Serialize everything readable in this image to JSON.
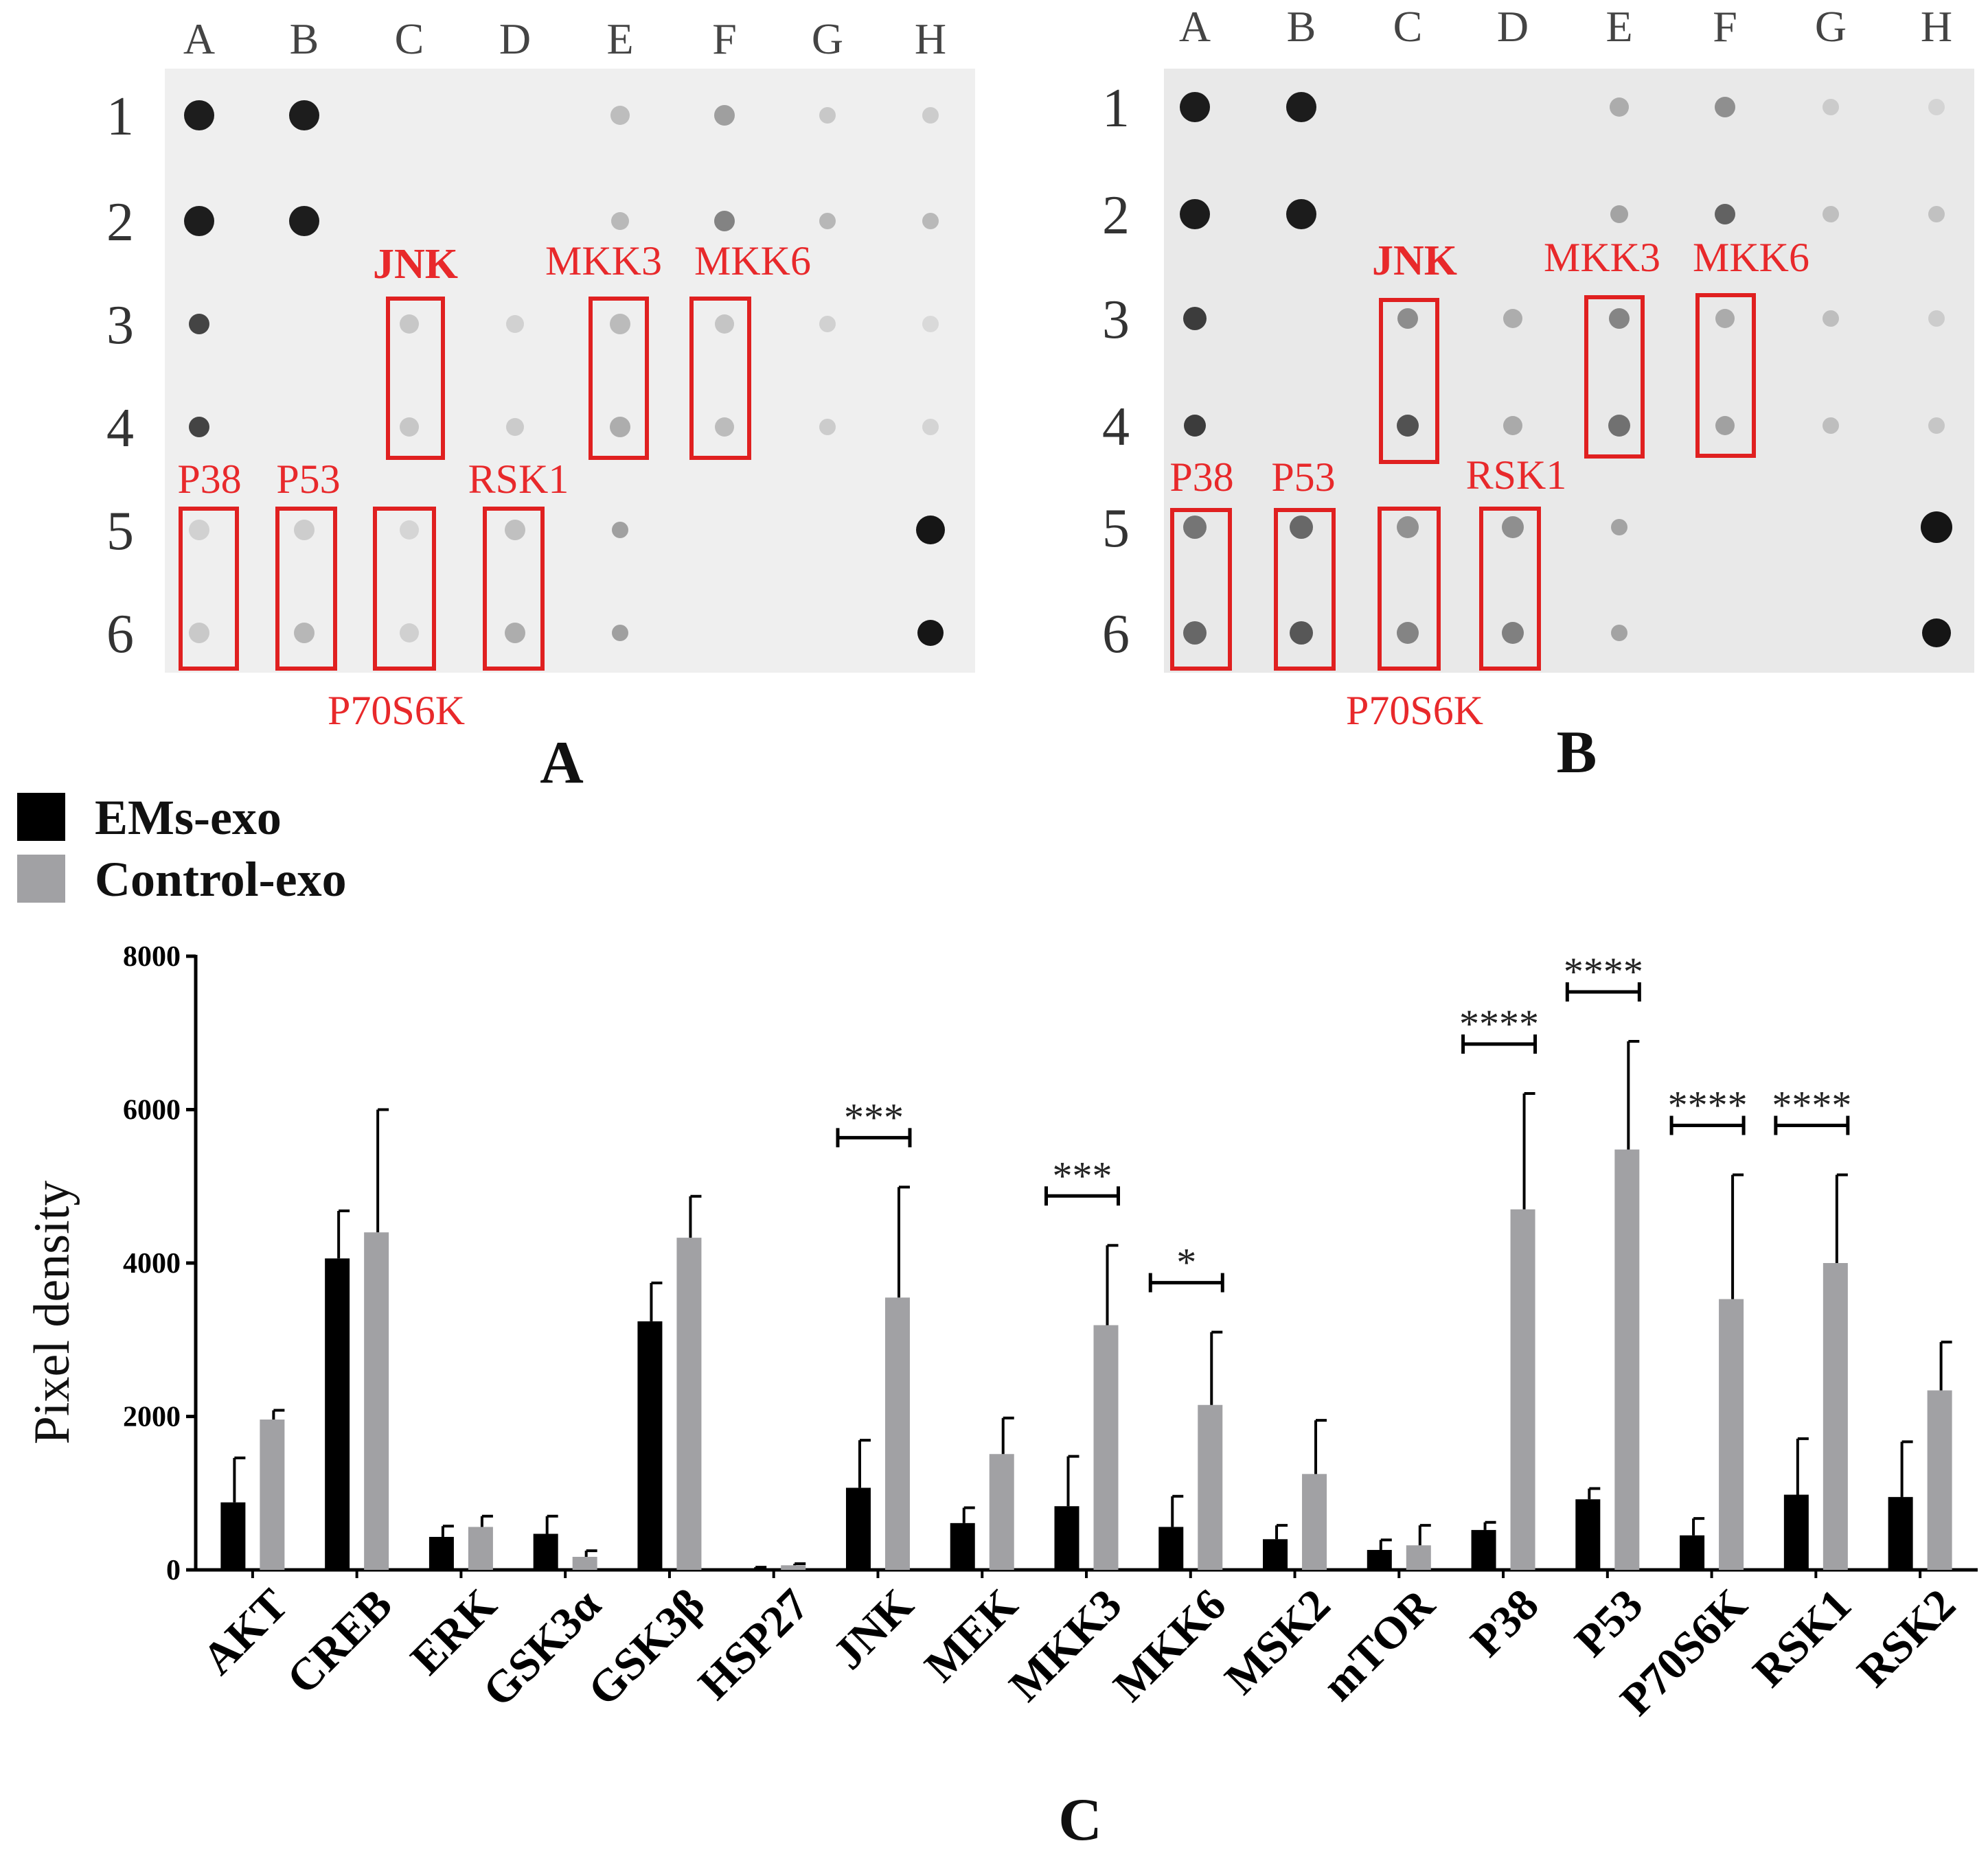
{
  "blot_a": {
    "panel_label": "A",
    "columns": [
      "A",
      "B",
      "C",
      "D",
      "E",
      "F",
      "G",
      "H"
    ],
    "rows": [
      "1",
      "2",
      "3",
      "4",
      "5",
      "6"
    ],
    "labels": {
      "jnk": "JNK",
      "mkk3": "MKK3",
      "mkk6": "MKK6",
      "p38": "P38",
      "p53": "P53",
      "rsk1": "RSK1",
      "p70s6k": "P70S6K"
    }
  },
  "blot_b": {
    "panel_label": "B",
    "columns": [
      "A",
      "B",
      "C",
      "D",
      "E",
      "F",
      "G",
      "H"
    ],
    "rows": [
      "1",
      "2",
      "3",
      "4",
      "5",
      "6"
    ],
    "labels": {
      "jnk": "JNK",
      "mkk3": "MKK3",
      "mkk6": "MKK6",
      "p38": "P38",
      "p53": "P53",
      "rsk1": "RSK1",
      "p70s6k": "P70S6K"
    }
  },
  "legend": {
    "emsexo": "EMs-exo",
    "controlexo": "Control-exo"
  },
  "panel_c_label": "C",
  "colors": {
    "ems": "#000000",
    "control": "#a1a1a4",
    "annotation": "#e8292b"
  },
  "chart_data": {
    "type": "bar",
    "title": "",
    "xlabel": "",
    "ylabel": "Pixel density",
    "ylim": [
      0,
      8000
    ],
    "yticks": [
      "0",
      "2000",
      "4000",
      "6000",
      "8000"
    ],
    "categories": [
      "AKT",
      "CREB",
      "ERK",
      "GSK3α",
      "GSK3β",
      "HSP27",
      "JNK",
      "MEK",
      "MKK3",
      "MKK6",
      "MSK2",
      "mTOR",
      "P38",
      "P53",
      "P70S6K",
      "RSK1",
      "RSK2"
    ],
    "series": [
      {
        "name": "EMs-exo",
        "values": [
          880,
          4060,
          430,
          470,
          3240,
          20,
          1070,
          610,
          830,
          560,
          400,
          260,
          520,
          920,
          450,
          980,
          950
        ],
        "errors": [
          580,
          620,
          140,
          230,
          500,
          15,
          620,
          200,
          650,
          400,
          180,
          130,
          100,
          140,
          220,
          730,
          720
        ]
      },
      {
        "name": "Control-exo",
        "values": [
          1960,
          4400,
          560,
          170,
          4330,
          60,
          3550,
          1510,
          3190,
          2150,
          1250,
          320,
          4700,
          5480,
          3530,
          4000,
          2340
        ],
        "errors": [
          120,
          1600,
          140,
          80,
          540,
          20,
          1440,
          470,
          1040,
          950,
          700,
          260,
          1510,
          1410,
          1620,
          1150,
          630
        ]
      }
    ],
    "significance": [
      {
        "category": "JNK",
        "label": "***"
      },
      {
        "category": "MKK3",
        "label": "***"
      },
      {
        "category": "MKK6",
        "label": "*"
      },
      {
        "category": "P38",
        "label": "****"
      },
      {
        "category": "P53",
        "label": "****"
      },
      {
        "category": "P70S6K",
        "label": "****"
      },
      {
        "category": "RSK1",
        "label": "****"
      }
    ]
  }
}
